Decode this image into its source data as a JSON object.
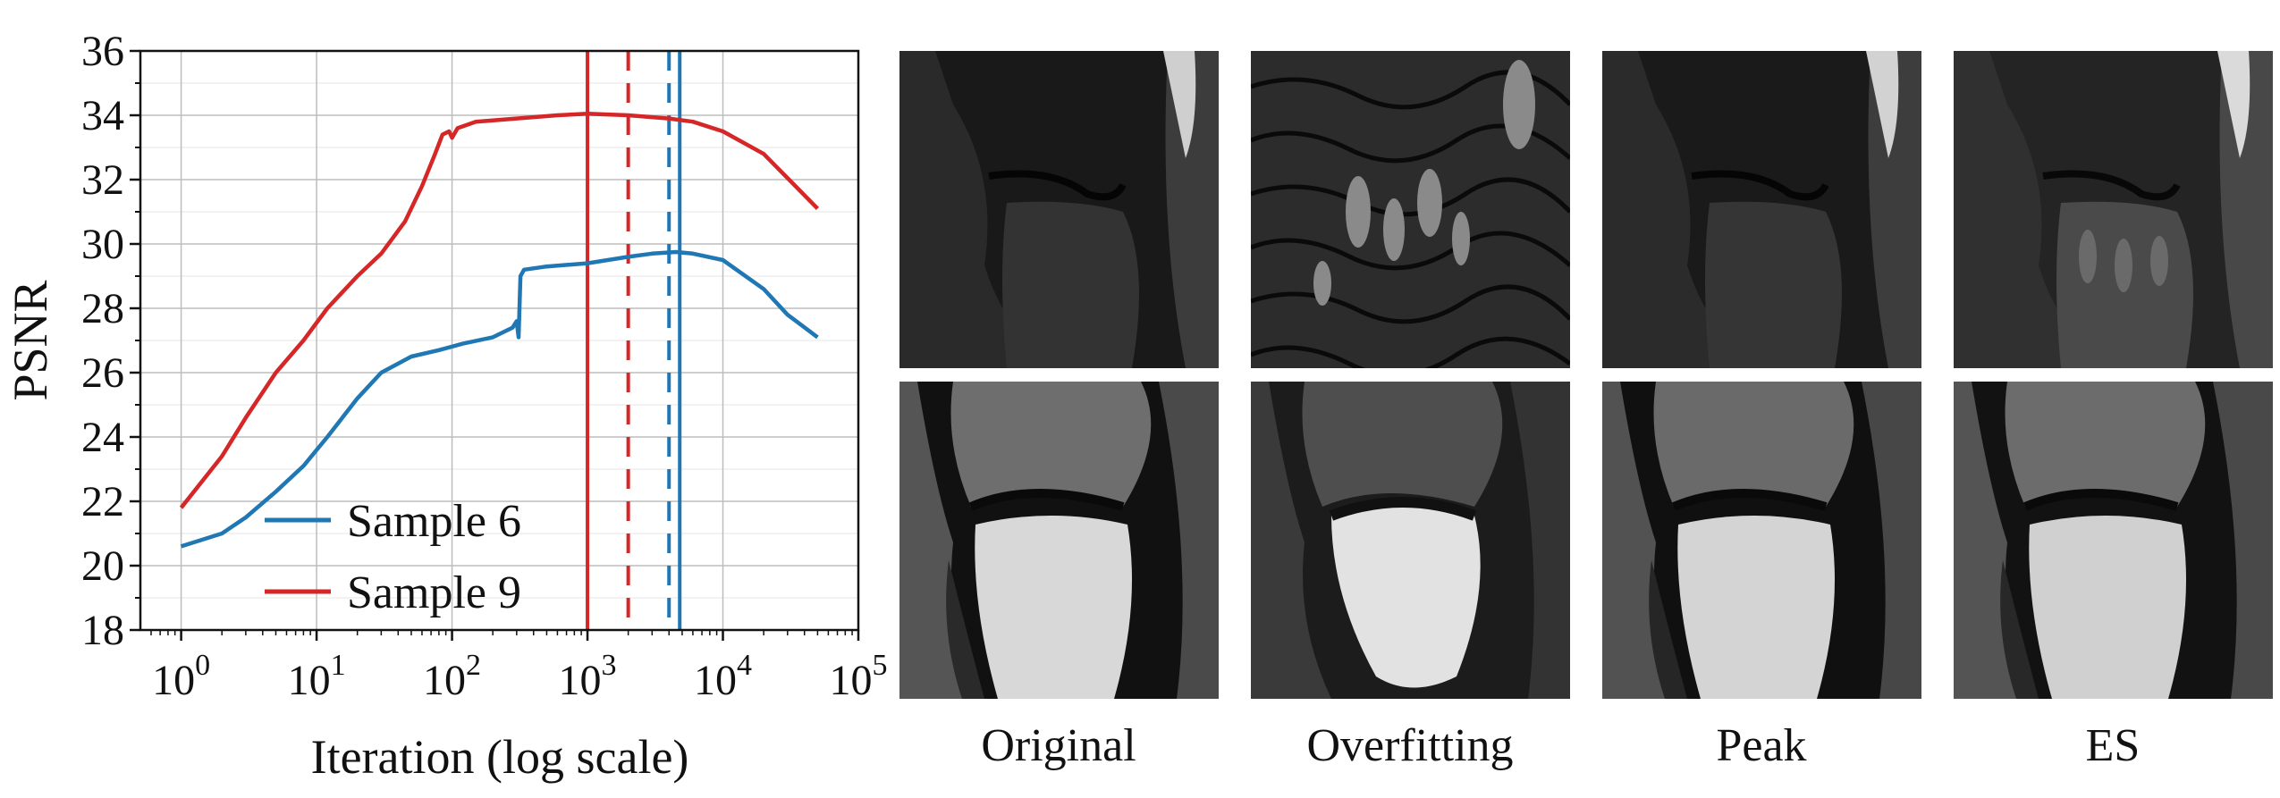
{
  "chart_data": {
    "type": "line",
    "xlabel": "Iteration (log scale)",
    "ylabel": "PSNR",
    "xscale": "log",
    "xlim": [
      0.5,
      100000
    ],
    "ylim": [
      18,
      36
    ],
    "x_ticks": [
      {
        "value": 1,
        "base": "10",
        "exp": "0"
      },
      {
        "value": 10,
        "base": "10",
        "exp": "1"
      },
      {
        "value": 100,
        "base": "10",
        "exp": "2"
      },
      {
        "value": 1000,
        "base": "10",
        "exp": "3"
      },
      {
        "value": 10000,
        "base": "10",
        "exp": "4"
      },
      {
        "value": 100000,
        "base": "10",
        "exp": "5"
      }
    ],
    "y_ticks": [
      18,
      20,
      22,
      24,
      26,
      28,
      30,
      32,
      34,
      36
    ],
    "grid": true,
    "legend_position": "lower-left",
    "series": [
      {
        "name": "Sample 6",
        "color": "#1f77b4",
        "points": [
          [
            1,
            20.6
          ],
          [
            2,
            21.0
          ],
          [
            3,
            21.5
          ],
          [
            5,
            22.3
          ],
          [
            8,
            23.1
          ],
          [
            12,
            24.0
          ],
          [
            20,
            25.2
          ],
          [
            30,
            26.0
          ],
          [
            50,
            26.5
          ],
          [
            80,
            26.7
          ],
          [
            120,
            26.9
          ],
          [
            200,
            27.1
          ],
          [
            280,
            27.4
          ],
          [
            300,
            27.6
          ],
          [
            310,
            27.1
          ],
          [
            320,
            29.0
          ],
          [
            340,
            29.2
          ],
          [
            500,
            29.3
          ],
          [
            1000,
            29.4
          ],
          [
            2000,
            29.6
          ],
          [
            3000,
            29.7
          ],
          [
            4500,
            29.75
          ],
          [
            6000,
            29.7
          ],
          [
            10000,
            29.5
          ],
          [
            20000,
            28.6
          ],
          [
            30000,
            27.8
          ],
          [
            50000,
            27.1
          ]
        ]
      },
      {
        "name": "Sample 9",
        "color": "#d62728",
        "points": [
          [
            1,
            21.8
          ],
          [
            2,
            23.4
          ],
          [
            3,
            24.6
          ],
          [
            5,
            26.0
          ],
          [
            8,
            27.0
          ],
          [
            12,
            28.0
          ],
          [
            20,
            29.0
          ],
          [
            30,
            29.7
          ],
          [
            45,
            30.7
          ],
          [
            60,
            31.8
          ],
          [
            75,
            32.8
          ],
          [
            85,
            33.4
          ],
          [
            95,
            33.5
          ],
          [
            100,
            33.3
          ],
          [
            110,
            33.6
          ],
          [
            150,
            33.8
          ],
          [
            300,
            33.9
          ],
          [
            600,
            34.0
          ],
          [
            1000,
            34.05
          ],
          [
            2000,
            34.0
          ],
          [
            4000,
            33.9
          ],
          [
            6000,
            33.8
          ],
          [
            10000,
            33.5
          ],
          [
            20000,
            32.8
          ],
          [
            50000,
            31.1
          ]
        ]
      }
    ],
    "vertical_lines": [
      {
        "x": 1000,
        "color": "#d62728",
        "style": "solid"
      },
      {
        "x": 2000,
        "color": "#d62728",
        "style": "dashed"
      },
      {
        "x": 4000,
        "color": "#1f77b4",
        "style": "dashed"
      },
      {
        "x": 4800,
        "color": "#1f77b4",
        "style": "solid"
      }
    ]
  },
  "image_panels": {
    "columns": [
      {
        "label": "Original"
      },
      {
        "label": "Overfitting"
      },
      {
        "label": "Peak"
      },
      {
        "label": "ES"
      }
    ]
  }
}
